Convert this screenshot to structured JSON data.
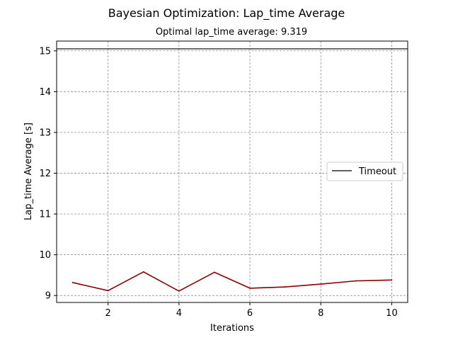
{
  "chart_data": {
    "type": "line",
    "title": "Bayesian Optimization: Lap_time Average",
    "subtitle": "Optimal lap_time average: 9.319",
    "xlabel": "Iterations",
    "ylabel": "Lap_time Average [s]",
    "xlim": [
      0.55,
      10.45
    ],
    "ylim": [
      8.83,
      15.24
    ],
    "xticks": [
      2,
      4,
      6,
      8,
      10
    ],
    "yticks": [
      9,
      10,
      11,
      12,
      13,
      14,
      15
    ],
    "grid": true,
    "legend": {
      "placement": "center-right",
      "entries": [
        "Timeout"
      ]
    },
    "series": [
      {
        "color": "#8b0000",
        "x": [
          1,
          2,
          3,
          4,
          5,
          6,
          7,
          8,
          9,
          10
        ],
        "y": [
          9.32,
          9.12,
          9.58,
          9.11,
          9.57,
          9.18,
          9.21,
          9.28,
          9.36,
          9.38
        ]
      }
    ],
    "reference_lines": [
      {
        "name": "Timeout",
        "y": 15.05,
        "color": "#000000"
      }
    ]
  }
}
